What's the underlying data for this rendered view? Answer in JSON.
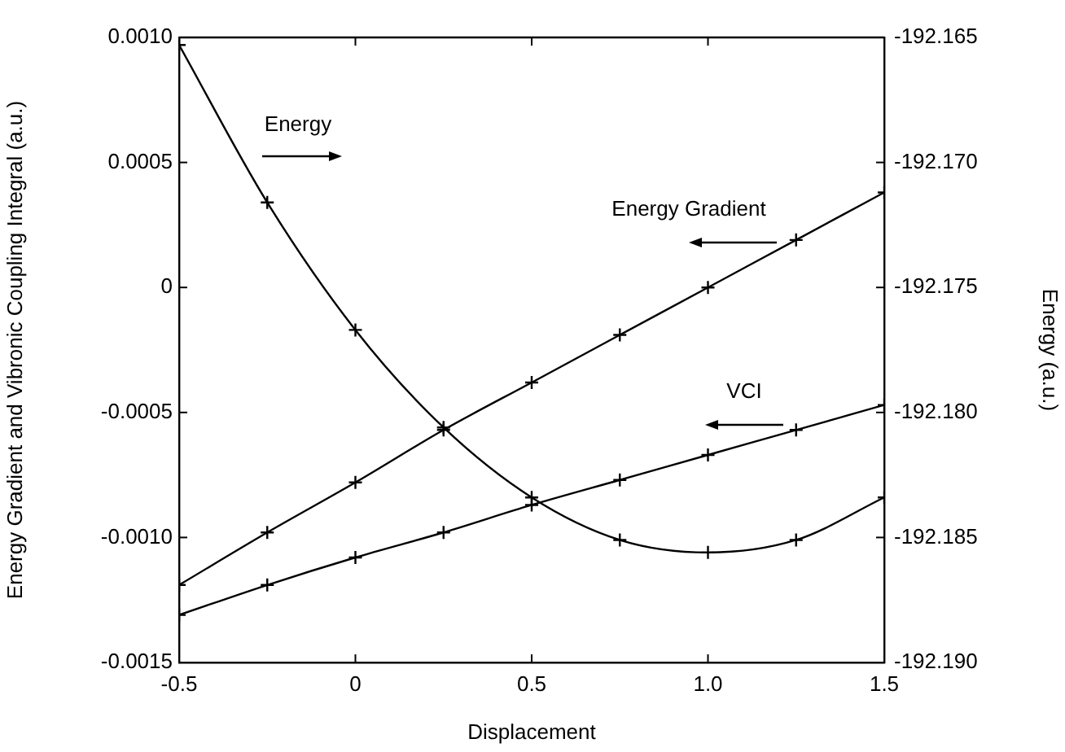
{
  "chart_data": {
    "type": "line",
    "xlabel": "Displacement",
    "ylabel": "Energy Gradient and Vibronic Coupling Integral (a.u.)",
    "y2label": "Energy (a.u.)",
    "x": [
      -0.5,
      -0.25,
      0,
      0.25,
      0.5,
      0.75,
      1.0,
      1.25,
      1.5
    ],
    "series": [
      {
        "name": "Energy",
        "color": "#000000",
        "axis": "y2",
        "marker": "cross",
        "values": [
          -192.1653,
          -192.1716,
          -192.1767,
          -192.1806,
          -192.1834,
          -192.1851,
          -192.1856,
          -192.1851,
          -192.1834
        ]
      },
      {
        "name": "Energy Gradient",
        "color": "#000000",
        "marker": "cross",
        "values": [
          -0.00119,
          -0.00098,
          -0.00078,
          -0.00057,
          -0.00038,
          -0.00019,
          0.0,
          0.00019,
          0.00038
        ]
      },
      {
        "name": "VCI",
        "color": "#000000",
        "marker": "cross",
        "values": [
          -0.00131,
          -0.00119,
          -0.00108,
          -0.00098,
          -0.00087,
          -0.00077,
          -0.00067,
          -0.00057,
          -0.00047
        ]
      }
    ],
    "xlim": [
      -0.5,
      1.5
    ],
    "xticks": [
      -0.5,
      0,
      0.5,
      {
        "value": 1,
        "label": "1.0"
      },
      1.5
    ],
    "ylim": [
      -0.0015,
      0.001
    ],
    "yticks": [
      {
        "value": -0.0015,
        "label": "-0.0015"
      },
      {
        "value": -0.001,
        "label": "-0.0010"
      },
      {
        "value": -0.0005,
        "label": "-0.0005"
      },
      0,
      {
        "value": 0.0005,
        "label": "0.0005"
      },
      {
        "value": 0.001,
        "label": "0.0010"
      }
    ],
    "y2lim": [
      -192.19,
      -192.165
    ],
    "y2ticks": [
      {
        "value": -192.19,
        "label": "-192.190"
      },
      -192.185,
      {
        "value": -192.18,
        "label": "-192.180"
      },
      -192.175,
      {
        "value": -192.17,
        "label": "-192.170"
      },
      -192.165
    ],
    "grid": false,
    "legend": false,
    "line_style": "solid"
  }
}
